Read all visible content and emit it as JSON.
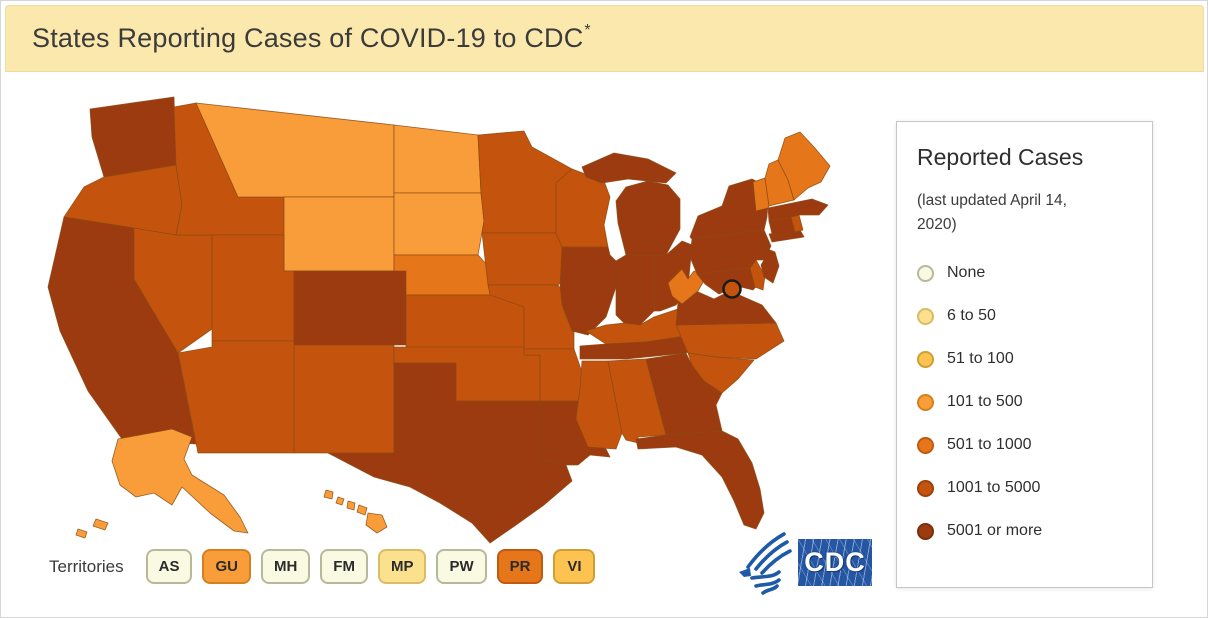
{
  "header": {
    "title": "States Reporting Cases of COVID-19 to CDC",
    "asterisk": "*"
  },
  "palette": {
    "none": {
      "fill": "#FAFAE3",
      "stroke": "#B8B89B"
    },
    "c6_50": {
      "fill": "#FBE08D",
      "stroke": "#D9BC64"
    },
    "c51_100": {
      "fill": "#FCC351",
      "stroke": "#CF9F35"
    },
    "c101_500": {
      "fill": "#F99D3B",
      "stroke": "#D67F1F"
    },
    "c501_1000": {
      "fill": "#E6761A",
      "stroke": "#BF5B10"
    },
    "c1001_5000": {
      "fill": "#C4540D",
      "stroke": "#9E410A"
    },
    "c5001_more": {
      "fill": "#9D3B10",
      "stroke": "#7C2D0A"
    }
  },
  "legend": {
    "title": "Reported Cases",
    "subtitle": "(last updated April 14, 2020)",
    "items": [
      {
        "label": "None",
        "category": "none"
      },
      {
        "label": "6 to 50",
        "category": "c6_50"
      },
      {
        "label": "51 to 100",
        "category": "c51_100"
      },
      {
        "label": "101 to 500",
        "category": "c101_500"
      },
      {
        "label": "501 to 1000",
        "category": "c501_1000"
      },
      {
        "label": "1001 to 5000",
        "category": "c1001_5000"
      },
      {
        "label": "5001 or more",
        "category": "c5001_more"
      }
    ]
  },
  "map": {
    "states": [
      {
        "id": "WA",
        "category": "c5001_more"
      },
      {
        "id": "OR",
        "category": "c1001_5000"
      },
      {
        "id": "CA",
        "category": "c5001_more"
      },
      {
        "id": "NV",
        "category": "c1001_5000"
      },
      {
        "id": "ID",
        "category": "c1001_5000"
      },
      {
        "id": "MT",
        "category": "c101_500"
      },
      {
        "id": "WY",
        "category": "c101_500"
      },
      {
        "id": "UT",
        "category": "c1001_5000"
      },
      {
        "id": "CO",
        "category": "c5001_more"
      },
      {
        "id": "AZ",
        "category": "c1001_5000"
      },
      {
        "id": "NM",
        "category": "c1001_5000"
      },
      {
        "id": "ND",
        "category": "c101_500"
      },
      {
        "id": "SD",
        "category": "c101_500"
      },
      {
        "id": "NE",
        "category": "c501_1000"
      },
      {
        "id": "KS",
        "category": "c1001_5000"
      },
      {
        "id": "OK",
        "category": "c1001_5000"
      },
      {
        "id": "TX",
        "category": "c5001_more"
      },
      {
        "id": "MN",
        "category": "c1001_5000"
      },
      {
        "id": "IA",
        "category": "c1001_5000"
      },
      {
        "id": "MO",
        "category": "c1001_5000"
      },
      {
        "id": "AR",
        "category": "c1001_5000"
      },
      {
        "id": "LA",
        "category": "c5001_more"
      },
      {
        "id": "WI",
        "category": "c1001_5000"
      },
      {
        "id": "IL",
        "category": "c5001_more"
      },
      {
        "id": "MI",
        "category": "c5001_more"
      },
      {
        "id": "IN",
        "category": "c5001_more"
      },
      {
        "id": "OH",
        "category": "c5001_more"
      },
      {
        "id": "KY",
        "category": "c1001_5000"
      },
      {
        "id": "TN",
        "category": "c5001_more"
      },
      {
        "id": "MS",
        "category": "c1001_5000"
      },
      {
        "id": "AL",
        "category": "c1001_5000"
      },
      {
        "id": "GA",
        "category": "c5001_more"
      },
      {
        "id": "FL",
        "category": "c5001_more"
      },
      {
        "id": "SC",
        "category": "c1001_5000"
      },
      {
        "id": "NC",
        "category": "c1001_5000"
      },
      {
        "id": "VA",
        "category": "c5001_more"
      },
      {
        "id": "WV",
        "category": "c501_1000"
      },
      {
        "id": "MD",
        "category": "c5001_more"
      },
      {
        "id": "DE",
        "category": "c1001_5000"
      },
      {
        "id": "PA",
        "category": "c5001_more"
      },
      {
        "id": "NJ",
        "category": "c5001_more"
      },
      {
        "id": "NY",
        "category": "c5001_more"
      },
      {
        "id": "CT",
        "category": "c5001_more"
      },
      {
        "id": "RI",
        "category": "c1001_5000"
      },
      {
        "id": "MA",
        "category": "c5001_more"
      },
      {
        "id": "VT",
        "category": "c501_1000"
      },
      {
        "id": "NH",
        "category": "c501_1000"
      },
      {
        "id": "ME",
        "category": "c501_1000"
      },
      {
        "id": "AK",
        "category": "c101_500"
      },
      {
        "id": "HI",
        "category": "c101_500"
      },
      {
        "id": "DC",
        "category": "c1001_5000"
      }
    ]
  },
  "territories": {
    "label": "Territories",
    "items": [
      {
        "code": "AS",
        "category": "none"
      },
      {
        "code": "GU",
        "category": "c101_500"
      },
      {
        "code": "MH",
        "category": "none"
      },
      {
        "code": "FM",
        "category": "none"
      },
      {
        "code": "MP",
        "category": "c6_50"
      },
      {
        "code": "PW",
        "category": "none"
      },
      {
        "code": "PR",
        "category": "c501_1000"
      },
      {
        "code": "VI",
        "category": "c51_100"
      }
    ]
  },
  "logos": {
    "cdc_text": "CDC",
    "brand_blue": "#2456a4"
  }
}
